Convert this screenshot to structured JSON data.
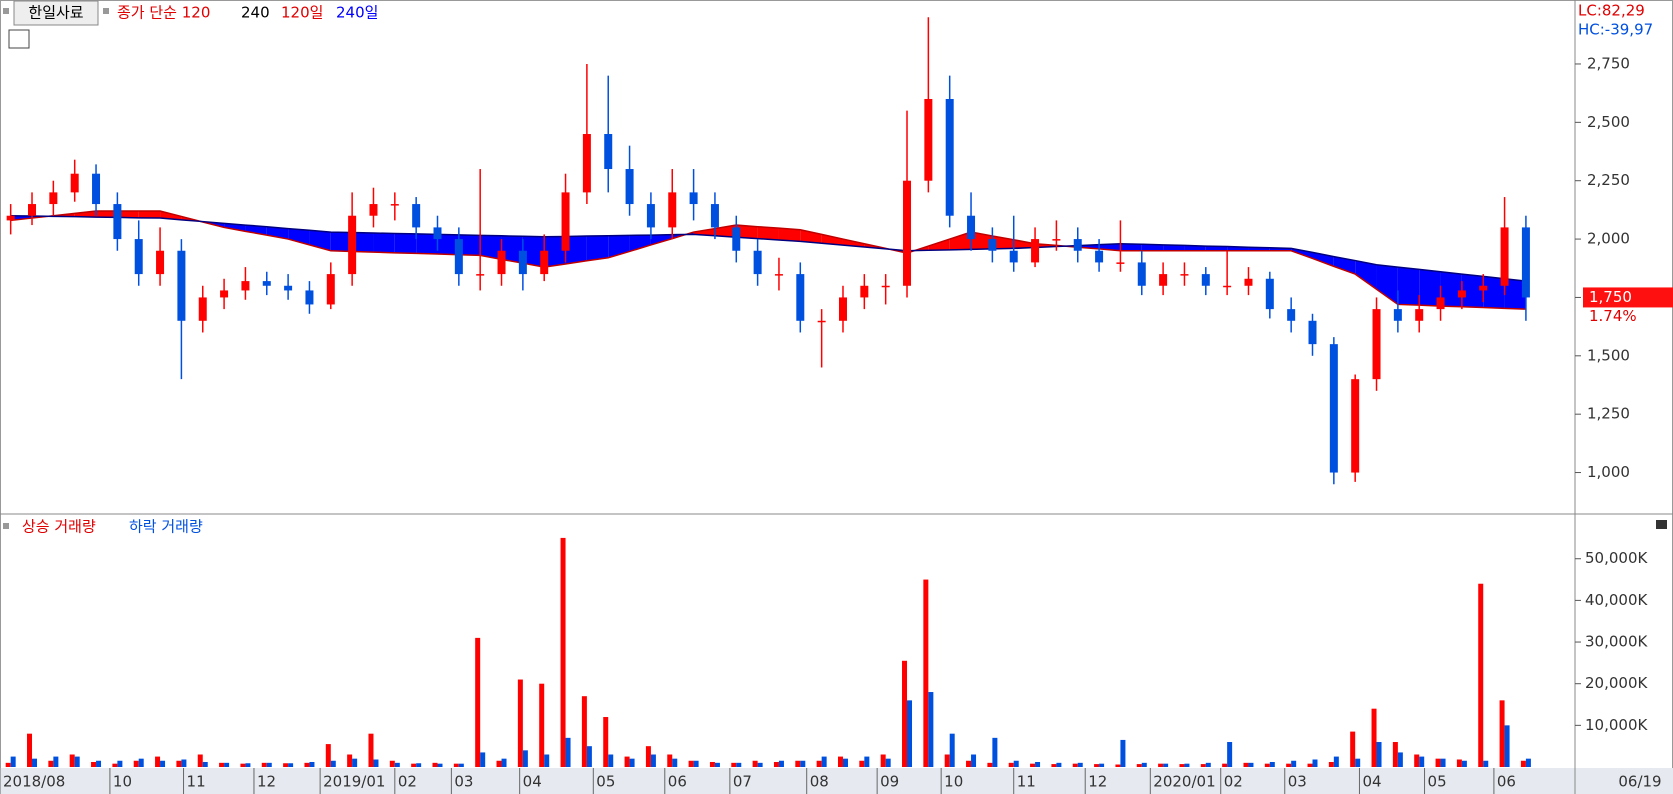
{
  "chart_data": [
    {
      "type": "candlestick",
      "title": "한일사료",
      "settings_label": [
        "종가 단순 120",
        "240"
      ],
      "annotations": [
        "LC:82,29",
        "HC:-39,97"
      ],
      "last_price": {
        "value": 1750,
        "label": "1,750"
      },
      "change": {
        "value": 1.74,
        "label": "1.74%"
      },
      "up_color": "#ff0000",
      "down_color": "#0050e0",
      "xlim": [
        0,
        73.8
      ],
      "ylim": [
        831,
        3024
      ],
      "yticks": [
        {
          "value": 1000,
          "label": "1,000"
        },
        {
          "value": 1250,
          "label": "1,250"
        },
        {
          "value": 1500,
          "label": "1,500"
        },
        {
          "value": 1750,
          "label": "1,750"
        },
        {
          "value": 2000,
          "label": "2,000"
        },
        {
          "value": 2250,
          "label": "2,250"
        },
        {
          "value": 2500,
          "label": "2,500"
        },
        {
          "value": 2750,
          "label": "2,750"
        }
      ],
      "open": [
        2080,
        2100,
        2150,
        2200,
        2280,
        2150,
        2000,
        1850,
        1950,
        1650,
        1750,
        1780,
        1820,
        1800,
        1780,
        1720,
        1850,
        2100,
        2150,
        2150,
        2050,
        2000,
        1850,
        1850,
        1950,
        1850,
        1950,
        2200,
        2450,
        2300,
        2150,
        2050,
        2200,
        2150,
        2050,
        1950,
        1850,
        1850,
        1650,
        1650,
        1750,
        1800,
        1800,
        2250,
        2600,
        2100,
        2000,
        1950,
        1900,
        2000,
        2000,
        1950,
        1900,
        1900,
        1800,
        1850,
        1850,
        1800,
        1800,
        1830,
        1700,
        1650,
        1550,
        1000,
        1400,
        1700,
        1650,
        1700,
        1750,
        1780,
        1800,
        2050
      ],
      "high": [
        2150,
        2200,
        2250,
        2340,
        2320,
        2200,
        2080,
        2050,
        2000,
        1800,
        1830,
        1880,
        1860,
        1850,
        1820,
        1900,
        2200,
        2220,
        2200,
        2180,
        2100,
        2050,
        2300,
        2000,
        2000,
        2020,
        2280,
        2750,
        2700,
        2400,
        2200,
        2300,
        2300,
        2200,
        2100,
        2000,
        1920,
        1900,
        1700,
        1800,
        1850,
        1850,
        2550,
        2950,
        2700,
        2200,
        2050,
        2100,
        2050,
        2080,
        2050,
        2000,
        2080,
        1950,
        1900,
        1900,
        1880,
        1950,
        1880,
        1860,
        1750,
        1680,
        1580,
        1420,
        1750,
        1780,
        1760,
        1800,
        1820,
        1850,
        2180,
        2100
      ],
      "low": [
        2020,
        2060,
        2100,
        2160,
        2100,
        1950,
        1800,
        1800,
        1400,
        1600,
        1700,
        1740,
        1760,
        1740,
        1680,
        1700,
        1800,
        2050,
        2080,
        2000,
        1950,
        1800,
        1780,
        1800,
        1780,
        1820,
        1900,
        2150,
        2200,
        2100,
        2000,
        2000,
        2080,
        2000,
        1900,
        1800,
        1780,
        1600,
        1450,
        1600,
        1700,
        1720,
        1750,
        2200,
        2050,
        1950,
        1900,
        1860,
        1880,
        1950,
        1900,
        1860,
        1860,
        1760,
        1760,
        1800,
        1760,
        1760,
        1760,
        1660,
        1600,
        1500,
        950,
        960,
        1350,
        1600,
        1600,
        1650,
        1700,
        1730,
        1760,
        1650
      ],
      "close": [
        2100,
        2150,
        2200,
        2280,
        2150,
        2000,
        1850,
        1950,
        1650,
        1750,
        1780,
        1820,
        1800,
        1780,
        1720,
        1850,
        2100,
        2150,
        2150,
        2050,
        2000,
        1850,
        1850,
        1950,
        1850,
        1950,
        2200,
        2450,
        2300,
        2150,
        2050,
        2200,
        2150,
        2050,
        1950,
        1850,
        1850,
        1650,
        1650,
        1750,
        1800,
        1800,
        2250,
        2600,
        2100,
        2000,
        1950,
        1900,
        2000,
        2000,
        1950,
        1900,
        1900,
        1800,
        1850,
        1850,
        1800,
        1800,
        1830,
        1700,
        1650,
        1550,
        1000,
        1400,
        1700,
        1650,
        1700,
        1750,
        1780,
        1800,
        2050,
        1750
      ],
      "series": [
        {
          "name": "120일",
          "color": "#ff0000",
          "values": [
            2080,
            2090,
            2100,
            2110,
            2120,
            2120,
            2120,
            2120,
            2097,
            2073,
            2050,
            2033,
            2017,
            2000,
            1975,
            1950,
            1947,
            1944,
            1941,
            1939,
            1936,
            1933,
            1930,
            1913,
            1897,
            1880,
            1893,
            1907,
            1920,
            1947,
            1975,
            2002,
            2030,
            2045,
            2060,
            2053,
            2047,
            2040,
            2020,
            2000,
            1980,
            1960,
            1940,
            1970,
            2000,
            2030,
            2013,
            1997,
            1980,
            1973,
            1965,
            1958,
            1950,
            1950,
            1950,
            1950,
            1950,
            1950,
            1950,
            1950,
            1950,
            1917,
            1883,
            1850,
            1785,
            1720,
            1717,
            1713,
            1710,
            1707,
            1703,
            1700
          ]
        },
        {
          "name": "240일",
          "color": "#0000ff",
          "values": [
            2100,
            2099,
            2097,
            2096,
            2094,
            2093,
            2091,
            2090,
            2082,
            2075,
            2067,
            2060,
            2053,
            2045,
            2038,
            2030,
            2028,
            2026,
            2024,
            2022,
            2020,
            2018,
            2016,
            2014,
            2012,
            2010,
            2011,
            2013,
            2014,
            2016,
            2017,
            2019,
            2020,
            2014,
            2008,
            2002,
            1996,
            1990,
            1982,
            1974,
            1966,
            1958,
            1950,
            1952,
            1954,
            1956,
            1958,
            1960,
            1964,
            1968,
            1972,
            1976,
            1980,
            1978,
            1975,
            1973,
            1970,
            1968,
            1965,
            1963,
            1960,
            1943,
            1925,
            1908,
            1890,
            1880,
            1870,
            1860,
            1850,
            1840,
            1830,
            1820
          ]
        }
      ]
    },
    {
      "type": "bar",
      "last_date": "06/19",
      "xlim": [
        0,
        73.8
      ],
      "ylim": [
        0,
        60500
      ],
      "yticks": [
        {
          "value": 10000,
          "label": "10,000K"
        },
        {
          "value": 20000,
          "label": "20,000K"
        },
        {
          "value": 30000,
          "label": "30,000K"
        },
        {
          "value": 40000,
          "label": "40,000K"
        },
        {
          "value": 50000,
          "label": "50,000K"
        }
      ],
      "xticks": [
        {
          "value": 0,
          "label": "2018/08"
        },
        {
          "value": 5.15,
          "label": "10"
        },
        {
          "value": 8.6,
          "label": "11"
        },
        {
          "value": 11.9,
          "label": "12"
        },
        {
          "value": 15,
          "label": "2019/01"
        },
        {
          "value": 18.5,
          "label": "02"
        },
        {
          "value": 21.15,
          "label": "03"
        },
        {
          "value": 24.35,
          "label": "04"
        },
        {
          "value": 27.8,
          "label": "05"
        },
        {
          "value": 31.15,
          "label": "06"
        },
        {
          "value": 34.2,
          "label": "07"
        },
        {
          "value": 37.8,
          "label": "08"
        },
        {
          "value": 41.1,
          "label": "09"
        },
        {
          "value": 44.1,
          "label": "10"
        },
        {
          "value": 47.5,
          "label": "11"
        },
        {
          "value": 50.85,
          "label": "12"
        },
        {
          "value": 53.9,
          "label": "2020/01"
        },
        {
          "value": 57.2,
          "label": "02"
        },
        {
          "value": 60.2,
          "label": "03"
        },
        {
          "value": 63.7,
          "label": "04"
        },
        {
          "value": 66.75,
          "label": "05"
        },
        {
          "value": 70,
          "label": "06"
        }
      ],
      "series": [
        {
          "name": "상승 거래량",
          "color": "#ff0000",
          "values": [
            1000,
            8000,
            1500,
            3000,
            1200,
            800,
            1500,
            2500,
            1500,
            3000,
            1000,
            800,
            1000,
            900,
            1000,
            5500,
            3000,
            8000,
            1500,
            800,
            1000,
            800,
            31000,
            1500,
            21000,
            20000,
            55000,
            17000,
            12000,
            2500,
            5000,
            3000,
            1500,
            1200,
            1000,
            1500,
            1200,
            1500,
            1500,
            2500,
            1500,
            3000,
            25500,
            45000,
            3000,
            1500,
            1000,
            1000,
            800,
            700,
            800,
            700,
            600,
            700,
            800,
            700,
            700,
            800,
            1000,
            800,
            800,
            800,
            1200,
            8500,
            14000,
            6000,
            3000,
            2000,
            1800,
            44000,
            16000,
            1500
          ]
        },
        {
          "name": "하락 거래량",
          "color": "#0050e0",
          "values": [
            2500,
            2000,
            2500,
            2500,
            1500,
            1500,
            2000,
            1500,
            1800,
            1200,
            1000,
            900,
            1000,
            900,
            1200,
            1500,
            2000,
            1800,
            1000,
            900,
            800,
            800,
            3500,
            2000,
            4000,
            3000,
            7000,
            5000,
            3000,
            2000,
            3000,
            2000,
            1500,
            1000,
            1000,
            1000,
            1500,
            1500,
            2500,
            2000,
            2500,
            2000,
            16000,
            18000,
            8000,
            3000,
            7000,
            1500,
            1200,
            1000,
            1000,
            800,
            6500,
            1000,
            800,
            800,
            1000,
            6000,
            1000,
            1200,
            1500,
            1800,
            2500,
            2000,
            6000,
            3500,
            2500,
            2000,
            1500,
            1500,
            10000,
            2000
          ]
        }
      ]
    }
  ]
}
